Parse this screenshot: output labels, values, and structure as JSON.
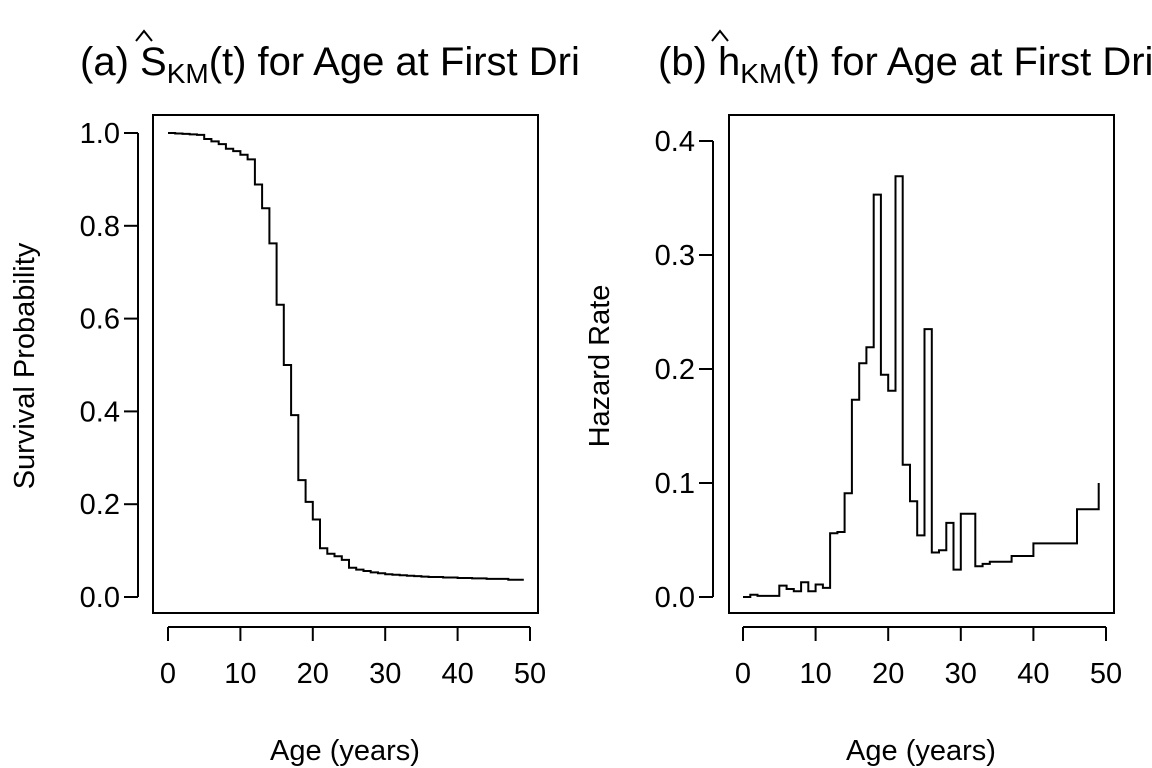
{
  "chart_data": [
    {
      "type": "line",
      "step": "post",
      "title": {
        "pre": "(a) ",
        "hat": "S",
        "sub": "KM",
        "post": "(t) for Age at First Drinking"
      },
      "xlabel": "Age (years)",
      "ylabel": "Survival Probability",
      "xlim": [
        0,
        50
      ],
      "ylim": [
        0,
        1
      ],
      "xticks": [
        0,
        10,
        20,
        30,
        40,
        50
      ],
      "yticks": [
        0.0,
        0.2,
        0.4,
        0.6,
        0.8,
        1.0
      ],
      "xtick_labels": [
        "0",
        "10",
        "20",
        "30",
        "40",
        "50"
      ],
      "ytick_labels": [
        "0.0",
        "0.2",
        "0.4",
        "0.6",
        "0.8",
        "1.0"
      ],
      "grid": false,
      "series": [
        {
          "x": [
            0,
            1,
            2,
            3,
            4,
            5,
            6,
            7,
            8,
            9,
            10,
            11,
            12,
            13,
            14,
            15,
            16,
            17,
            18,
            19,
            20,
            21,
            22,
            23,
            24,
            25,
            26,
            27,
            28,
            29,
            30,
            31,
            32,
            33,
            34,
            35,
            36,
            38,
            40,
            42,
            44,
            46,
            47,
            49
          ],
          "y": [
            1.0,
            0.999,
            0.998,
            0.997,
            0.996,
            0.987,
            0.982,
            0.976,
            0.966,
            0.961,
            0.953,
            0.943,
            0.889,
            0.838,
            0.762,
            0.63,
            0.5,
            0.392,
            0.252,
            0.205,
            0.167,
            0.105,
            0.093,
            0.088,
            0.08,
            0.063,
            0.059,
            0.056,
            0.053,
            0.051,
            0.049,
            0.048,
            0.047,
            0.046,
            0.045,
            0.044,
            0.043,
            0.042,
            0.041,
            0.04,
            0.039,
            0.039,
            0.037,
            0.035
          ]
        }
      ]
    },
    {
      "type": "line",
      "step": "post",
      "title": {
        "pre": "(b) ",
        "hat": "h",
        "sub": "KM",
        "post": "(t) for Age at First Drinking"
      },
      "xlabel": "Age (years)",
      "ylabel": "Hazard Rate",
      "xlim": [
        0,
        50
      ],
      "ylim": [
        0,
        0.4
      ],
      "xticks": [
        0,
        10,
        20,
        30,
        40,
        50
      ],
      "yticks": [
        0.0,
        0.1,
        0.2,
        0.3,
        0.4
      ],
      "xtick_labels": [
        "0",
        "10",
        "20",
        "30",
        "40",
        "50"
      ],
      "ytick_labels": [
        "0.0",
        "0.1",
        "0.2",
        "0.3",
        "0.4"
      ],
      "grid": false,
      "series": [
        {
          "x": [
            0,
            1,
            2,
            3,
            4,
            5,
            6,
            7,
            8,
            9,
            10,
            11,
            12,
            13,
            14,
            15,
            16,
            17,
            18,
            19,
            20,
            21,
            22,
            23,
            24,
            25,
            26,
            27,
            28,
            29,
            30,
            32,
            33,
            34,
            37,
            40,
            46,
            49
          ],
          "y": [
            0.0,
            0.002,
            0.001,
            0.001,
            0.001,
            0.01,
            0.007,
            0.005,
            0.013,
            0.005,
            0.011,
            0.008,
            0.056,
            0.057,
            0.091,
            0.173,
            0.205,
            0.219,
            0.353,
            0.195,
            0.181,
            0.369,
            0.116,
            0.084,
            0.054,
            0.235,
            0.039,
            0.041,
            0.065,
            0.024,
            0.073,
            0.027,
            0.029,
            0.031,
            0.036,
            0.047,
            0.077,
            0.1
          ]
        }
      ]
    }
  ]
}
